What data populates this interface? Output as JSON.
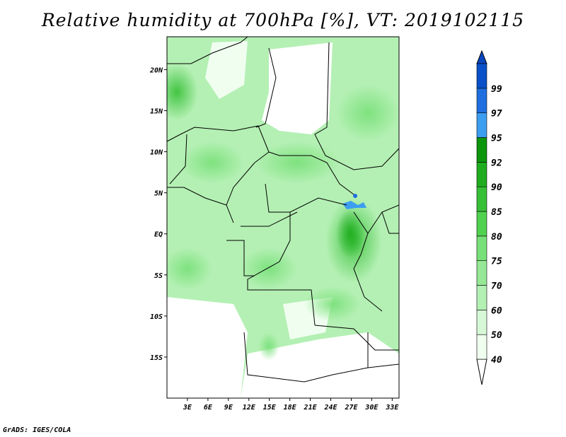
{
  "title": "Relative humidity at 700hPa [%], VT: 2019102115",
  "credit": "GrADS: IGES/COLA",
  "map": {
    "lon_range": [
      0,
      34
    ],
    "lat_range": [
      -20,
      24
    ],
    "lat_ticks": [
      {
        "value": 20,
        "label": "20N"
      },
      {
        "value": 15,
        "label": "15N"
      },
      {
        "value": 10,
        "label": "10N"
      },
      {
        "value": 5,
        "label": "5N"
      },
      {
        "value": 0,
        "label": "EQ"
      },
      {
        "value": -5,
        "label": "5S"
      },
      {
        "value": -10,
        "label": "10S"
      },
      {
        "value": -15,
        "label": "15S"
      }
    ],
    "lon_ticks": [
      {
        "value": 3,
        "label": "3E"
      },
      {
        "value": 6,
        "label": "6E"
      },
      {
        "value": 9,
        "label": "9E"
      },
      {
        "value": 12,
        "label": "12E"
      },
      {
        "value": 15,
        "label": "15E"
      },
      {
        "value": 18,
        "label": "18E"
      },
      {
        "value": 21,
        "label": "21E"
      },
      {
        "value": 24,
        "label": "24E"
      },
      {
        "value": 27,
        "label": "27E"
      },
      {
        "value": 30,
        "label": "30E"
      },
      {
        "value": 33,
        "label": "33E"
      }
    ]
  },
  "colorbar": {
    "levels": [
      {
        "label": "40",
        "color": "#f0fef0"
      },
      {
        "label": "50",
        "color": "#d6f8d6"
      },
      {
        "label": "60",
        "color": "#b4f0b4"
      },
      {
        "label": "70",
        "color": "#96e896"
      },
      {
        "label": "75",
        "color": "#78e078"
      },
      {
        "label": "80",
        "color": "#50d250"
      },
      {
        "label": "85",
        "color": "#36c036"
      },
      {
        "label": "90",
        "color": "#1fad1f"
      },
      {
        "label": "92",
        "color": "#0c960c"
      },
      {
        "label": "95",
        "color": "#3c9ef0"
      },
      {
        "label": "97",
        "color": "#1e6ee0"
      },
      {
        "label": "99",
        "color": "#0a50c8"
      }
    ],
    "below_color": "#ffffff",
    "above_color": "#0a46be"
  }
}
